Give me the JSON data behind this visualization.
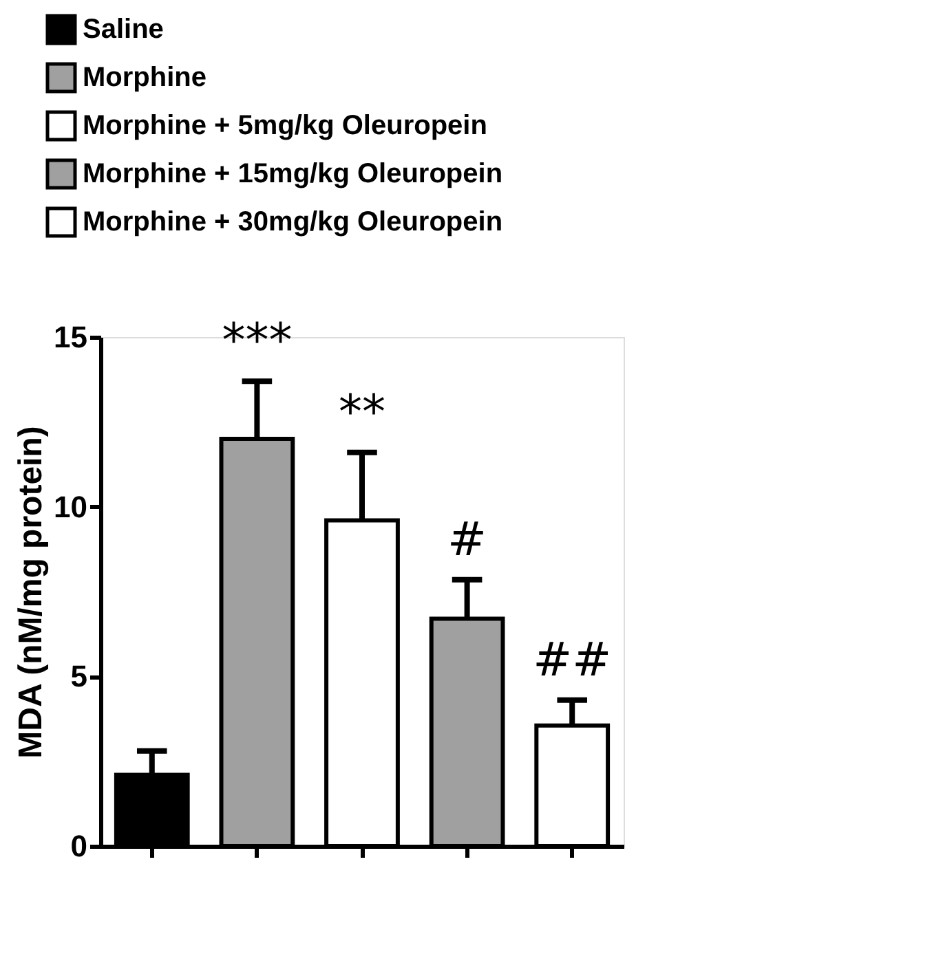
{
  "chart_data": {
    "type": "bar",
    "ylabel": "MDA (nM/mg protein)",
    "categories": [
      null
    ],
    "series": [
      {
        "name": "Saline",
        "color": "#000000",
        "values": [
          2.1
        ],
        "errors": [
          0.7
        ]
      },
      {
        "name": "Morphine",
        "color": "#a0a0a0",
        "values": [
          12.0
        ],
        "errors": [
          1.7
        ]
      },
      {
        "name": "Morphine + 5mg/kg Oleuropein",
        "color": "#ffffff",
        "values": [
          9.6
        ],
        "errors": [
          2.0
        ]
      },
      {
        "name": "Morphine + 15mg/kg Oleuropein",
        "color": "#a0a0a0",
        "values": [
          6.7
        ],
        "errors": [
          1.15
        ]
      },
      {
        "name": "Morphine + 30mg/kg Oleuropein",
        "color": "#ffffff",
        "values": [
          3.55
        ],
        "errors": [
          0.75
        ]
      }
    ],
    "annotations": [
      "***",
      "**",
      "#",
      "##"
    ],
    "ylim": [
      0,
      15
    ],
    "yticks": [
      0,
      5,
      10,
      15
    ],
    "grid": false,
    "legend": "top left",
    "tick_labels": "y"
  }
}
